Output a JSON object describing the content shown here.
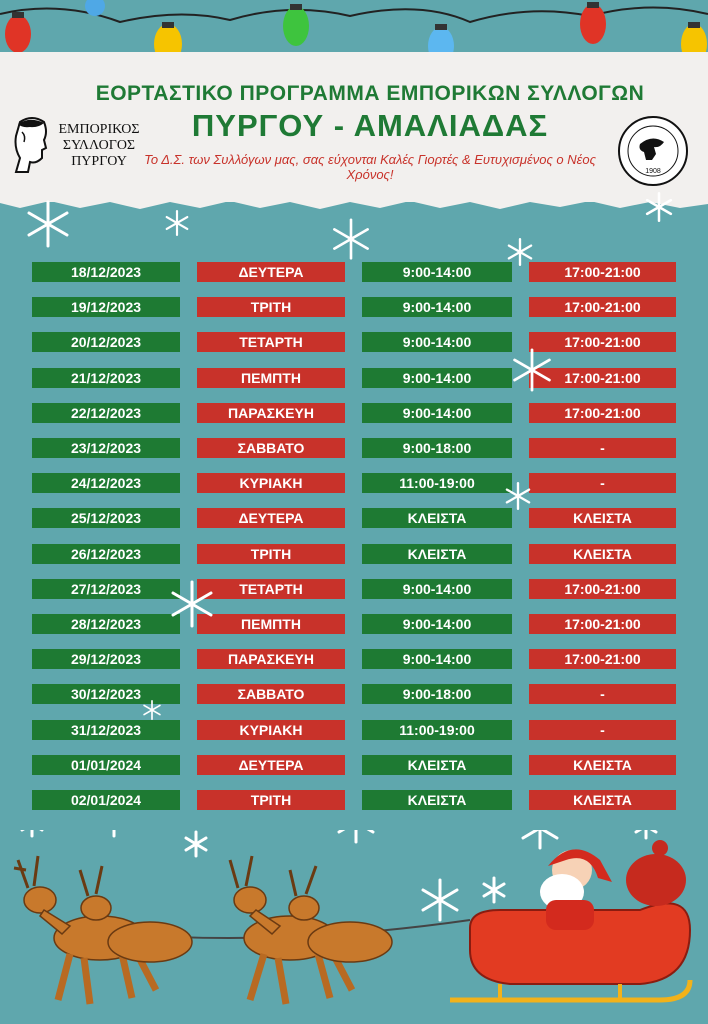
{
  "header": {
    "title_line1": "ΕΟΡΤΑΣΤΙΚΟ ΠΡΟΓΡΑΜΜΑ ΕΜΠΟΡΙΚΩΝ ΣΥΛΛΟΓΩΝ",
    "title_line2": "ΠΥΡΓΟΥ - ΑΜΑΛΙΑΔΑΣ",
    "subtitle": "Το Δ.Σ. των Συλλόγων μας, σας εύχονται Καλές Γιορτές & Ευτυχισμένος ο Νέος Χρόνος!",
    "logo_left_lines": [
      "ΕΜΠΟΡΙΚΟΣ",
      "ΣΥΛΛΟΓΟΣ",
      "ΠΥΡΓΟΥ"
    ],
    "logo_right_year": "1908"
  },
  "colors": {
    "green": "#1e7a33",
    "red": "#c8322a",
    "background": "#5fa7ad"
  },
  "schedule": [
    {
      "date": "18/12/2023",
      "day": "ΔΕΥΤΕΡΑ",
      "morning": "9:00-14:00",
      "evening": "17:00-21:00"
    },
    {
      "date": "19/12/2023",
      "day": "ΤΡΙΤΗ",
      "morning": "9:00-14:00",
      "evening": "17:00-21:00"
    },
    {
      "date": "20/12/2023",
      "day": "ΤΕΤΑΡΤΗ",
      "morning": "9:00-14:00",
      "evening": "17:00-21:00"
    },
    {
      "date": "21/12/2023",
      "day": "ΠΕΜΠΤΗ",
      "morning": "9:00-14:00",
      "evening": "17:00-21:00"
    },
    {
      "date": "22/12/2023",
      "day": "ΠΑΡΑΣΚΕΥΗ",
      "morning": "9:00-14:00",
      "evening": "17:00-21:00"
    },
    {
      "date": "23/12/2023",
      "day": "ΣΑΒΒΑΤΟ",
      "morning": "9:00-18:00",
      "evening": "-"
    },
    {
      "date": "24/12/2023",
      "day": "ΚΥΡΙΑΚΗ",
      "morning": "11:00-19:00",
      "evening": "-"
    },
    {
      "date": "25/12/2023",
      "day": "ΔΕΥΤΕΡΑ",
      "morning": "ΚΛΕΙΣΤΑ",
      "evening": "ΚΛΕΙΣΤΑ"
    },
    {
      "date": "26/12/2023",
      "day": "ΤΡΙΤΗ",
      "morning": "ΚΛΕΙΣΤΑ",
      "evening": "ΚΛΕΙΣΤΑ"
    },
    {
      "date": "27/12/2023",
      "day": "ΤΕΤΑΡΤΗ",
      "morning": "9:00-14:00",
      "evening": "17:00-21:00"
    },
    {
      "date": "28/12/2023",
      "day": "ΠΕΜΠΤΗ",
      "morning": "9:00-14:00",
      "evening": "17:00-21:00"
    },
    {
      "date": "29/12/2023",
      "day": "ΠΑΡΑΣΚΕΥΗ",
      "morning": "9:00-14:00",
      "evening": "17:00-21:00"
    },
    {
      "date": "30/12/2023",
      "day": "ΣΑΒΒΑΤΟ",
      "morning": "9:00-18:00",
      "evening": "-"
    },
    {
      "date": "31/12/2023",
      "day": "ΚΥΡΙΑΚΗ",
      "morning": "11:00-19:00",
      "evening": "-"
    },
    {
      "date": "01/01/2024",
      "day": "ΔΕΥΤΕΡΑ",
      "morning": "ΚΛΕΙΣΤΑ",
      "evening": "ΚΛΕΙΣΤΑ"
    },
    {
      "date": "02/01/2024",
      "day": "ΤΡΙΤΗ",
      "morning": "ΚΛΕΙΣΤΑ",
      "evening": "ΚΛΕΙΣΤΑ"
    }
  ]
}
